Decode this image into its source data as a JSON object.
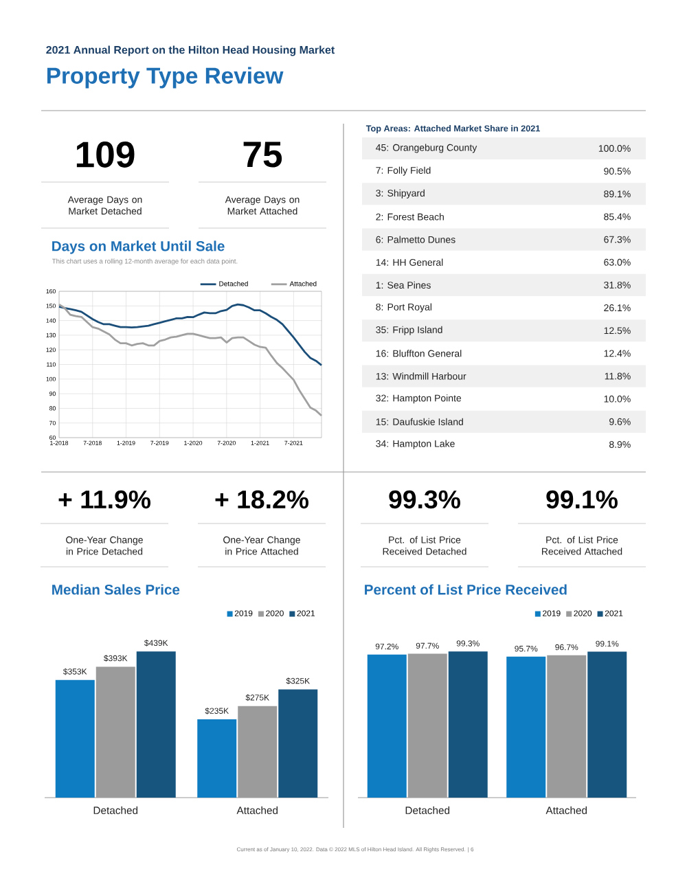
{
  "chart_data": [
    {
      "type": "other",
      "title": "2021 Annual Report on the Hilton Head Housing Market",
      "subtitle": "Property Type Review",
      "annotations": [
        "Current as of January 10, 2022. Data © 2022 MLS of Hilton Head Island. All Rights Reserved. | 6"
      ]
    },
    {
      "type": "other",
      "categories": [
        "Average Days on Market Detached",
        "Average Days on Market Attached"
      ],
      "values": [
        109,
        75
      ],
      "data_labels": true
    },
    {
      "type": "line",
      "title": "Days on Market Until Sale",
      "subtitle": "This chart uses a rolling 12-month average for each data point.",
      "x": [
        "2018-01",
        "2018-02",
        "2018-03",
        "2018-04",
        "2018-05",
        "2018-06",
        "2018-07",
        "2018-08",
        "2018-09",
        "2018-10",
        "2018-11",
        "2018-12",
        "2019-01",
        "2019-02",
        "2019-03",
        "2019-04",
        "2019-05",
        "2019-06",
        "2019-07",
        "2019-08",
        "2019-09",
        "2019-10",
        "2019-11",
        "2019-12",
        "2020-01",
        "2020-02",
        "2020-03",
        "2020-04",
        "2020-05",
        "2020-06",
        "2020-07",
        "2020-08",
        "2020-09",
        "2020-10",
        "2020-11",
        "2020-12",
        "2021-01",
        "2021-02",
        "2021-03",
        "2021-04",
        "2021-05",
        "2021-06",
        "2021-07",
        "2021-08",
        "2021-09",
        "2021-10",
        "2021-11",
        "2021-12"
      ],
      "series": [
        {
          "name": "Detached",
          "color": "#1b4f7a",
          "values": [
            149.5,
            148.5,
            147.8,
            147,
            146,
            143.5,
            141,
            139,
            137.5,
            137.5,
            136.5,
            135.5,
            135.5,
            135.3,
            135.5,
            136,
            136.5,
            137.5,
            138.5,
            139.5,
            140.5,
            141.5,
            141.5,
            142.5,
            142.3,
            144,
            145.5,
            145,
            145,
            146.5,
            147.3,
            150,
            151,
            150.5,
            149,
            147,
            147,
            145,
            142.5,
            140.5,
            137.5,
            133,
            128.5,
            123.5,
            118.5,
            114.5,
            112.5,
            109.5
          ]
        },
        {
          "name": "Attached",
          "color": "#a0a0a0",
          "values": [
            151,
            148.5,
            144,
            143,
            142.5,
            139,
            135.5,
            134.5,
            132.5,
            130.5,
            127,
            124.5,
            124.5,
            123,
            124,
            124.5,
            123,
            123,
            126,
            127,
            128.5,
            129,
            130,
            131,
            131,
            130,
            129,
            128,
            128,
            128.5,
            125,
            128,
            128.5,
            128.5,
            126,
            123.5,
            122,
            121.5,
            116,
            111,
            107.5,
            103.5,
            99.5,
            92.5,
            86.5,
            80.5,
            78.5,
            75
          ]
        }
      ],
      "xlim": [
        "2018-01",
        "2021-12"
      ],
      "xticks": [
        {
          "value": "2018-01",
          "label": "1-2018"
        },
        {
          "value": "2018-07",
          "label": "7-2018"
        },
        {
          "value": "2019-01",
          "label": "1-2019"
        },
        {
          "value": "2019-07",
          "label": "7-2019"
        },
        {
          "value": "2020-01",
          "label": "1-2020"
        },
        {
          "value": "2020-07",
          "label": "7-2020"
        },
        {
          "value": "2021-01",
          "label": "1-2021"
        },
        {
          "value": "2021-07",
          "label": "7-2021"
        }
      ],
      "ylim": [
        60,
        160
      ],
      "yticks": [
        60,
        70,
        80,
        90,
        100,
        110,
        120,
        130,
        140,
        150,
        160
      ],
      "grid": true,
      "legend": "top right"
    },
    {
      "type": "other",
      "title": "Top Areas: Attached Market Share in 2021",
      "categories": [
        "45: Orangeburg County",
        "7: Folly Field",
        "3: Shipyard",
        "2: Forest Beach",
        "6: Palmetto Dunes",
        "14: HH General",
        "1: Sea Pines",
        "8: Port Royal",
        "35: Fripp Island",
        "16: Bluffton General",
        "13: Windmill Harbour",
        "32: Hampton Pointe",
        "15: Daufuskie Island",
        "34: Hampton Lake"
      ],
      "values": [
        100.0,
        90.5,
        89.1,
        85.4,
        67.3,
        63.0,
        31.8,
        26.1,
        12.5,
        12.4,
        11.8,
        10.0,
        9.6,
        8.9
      ],
      "value_labels": [
        "100.0%",
        "90.5%",
        "89.1%",
        "85.4%",
        "67.3%",
        "63.0%",
        "31.8%",
        "26.1%",
        "12.5%",
        "12.4%",
        "11.8%",
        "10.0%",
        "9.6%",
        "8.9%"
      ]
    },
    {
      "type": "other",
      "categories": [
        "One-Year Change in Price Detached",
        "One-Year Change in Price Attached",
        "Pct. of List Price Received Detached",
        "Pct. of List Price Received Attached"
      ],
      "values": [
        11.9,
        18.2,
        99.3,
        99.1
      ],
      "value_labels": [
        "+ 11.9%",
        "+ 18.2%",
        "99.3%",
        "99.1%"
      ]
    },
    {
      "type": "bar",
      "title": "Median Sales Price",
      "categories": [
        "Detached",
        "Attached"
      ],
      "legend": "top right",
      "series": [
        {
          "name": "2019",
          "color": "#0f7dc2",
          "values": [
            353,
            235
          ],
          "value_labels": [
            "$353K",
            "$235K"
          ]
        },
        {
          "name": "2020",
          "color": "#9b9b9b",
          "values": [
            393,
            275
          ],
          "value_labels": [
            "$393K",
            "$275K"
          ]
        },
        {
          "name": "2021",
          "color": "#17557f",
          "values": [
            439,
            325
          ],
          "value_labels": [
            "$439K",
            "$325K"
          ]
        }
      ]
    },
    {
      "type": "bar",
      "title": "Percent of List Price Received",
      "categories": [
        "Detached",
        "Attached"
      ],
      "legend": "top right",
      "series": [
        {
          "name": "2019",
          "color": "#0f7dc2",
          "values": [
            97.2,
            95.7
          ],
          "value_labels": [
            "97.2%",
            "95.7%"
          ]
        },
        {
          "name": "2020",
          "color": "#9b9b9b",
          "values": [
            97.7,
            96.7
          ],
          "value_labels": [
            "97.7%",
            "96.7%"
          ]
        },
        {
          "name": "2021",
          "color": "#17557f",
          "values": [
            99.3,
            99.1
          ],
          "value_labels": [
            "99.3%",
            "99.1%"
          ]
        }
      ]
    }
  ]
}
